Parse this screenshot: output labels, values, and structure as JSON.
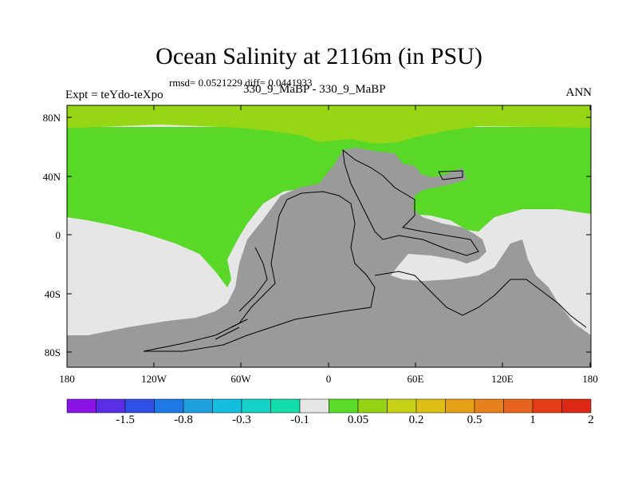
{
  "title": "Ocean Salinity at 2116m (in PSU)",
  "stats": "rmsd= 0.0521229 diff= 0.0441933",
  "left_label": "Expt = teYdo-teXpo",
  "center_label": "330_9_MaBP - 330_9_MaBP",
  "right_label": "ANN",
  "y_ticks": [
    "80N",
    "40N",
    "0",
    "40S",
    "80S"
  ],
  "x_ticks": [
    "180",
    "120W",
    "60W",
    "0",
    "60E",
    "120E",
    "180"
  ],
  "colorbar": {
    "colors": [
      "#8a14e6",
      "#5a2ee6",
      "#2e50e6",
      "#1e78e6",
      "#1ea0dc",
      "#14bede",
      "#14d2c8",
      "#14dcaa",
      "#e6e6e6",
      "#5adc28",
      "#96d214",
      "#c8d214",
      "#dcbe14",
      "#e6a014",
      "#e6821e",
      "#e6641e",
      "#e63c14",
      "#dc2814"
    ],
    "labels": [
      "-1.5",
      "-0.8",
      "-0.3",
      "-0.1",
      "0.05",
      "0.2",
      "0.5",
      "1",
      "2"
    ]
  },
  "map_colors": {
    "land": "#9a9a9a",
    "green": "#5ad828",
    "yellow_green": "#96d614",
    "light": "#e6e6e6"
  }
}
